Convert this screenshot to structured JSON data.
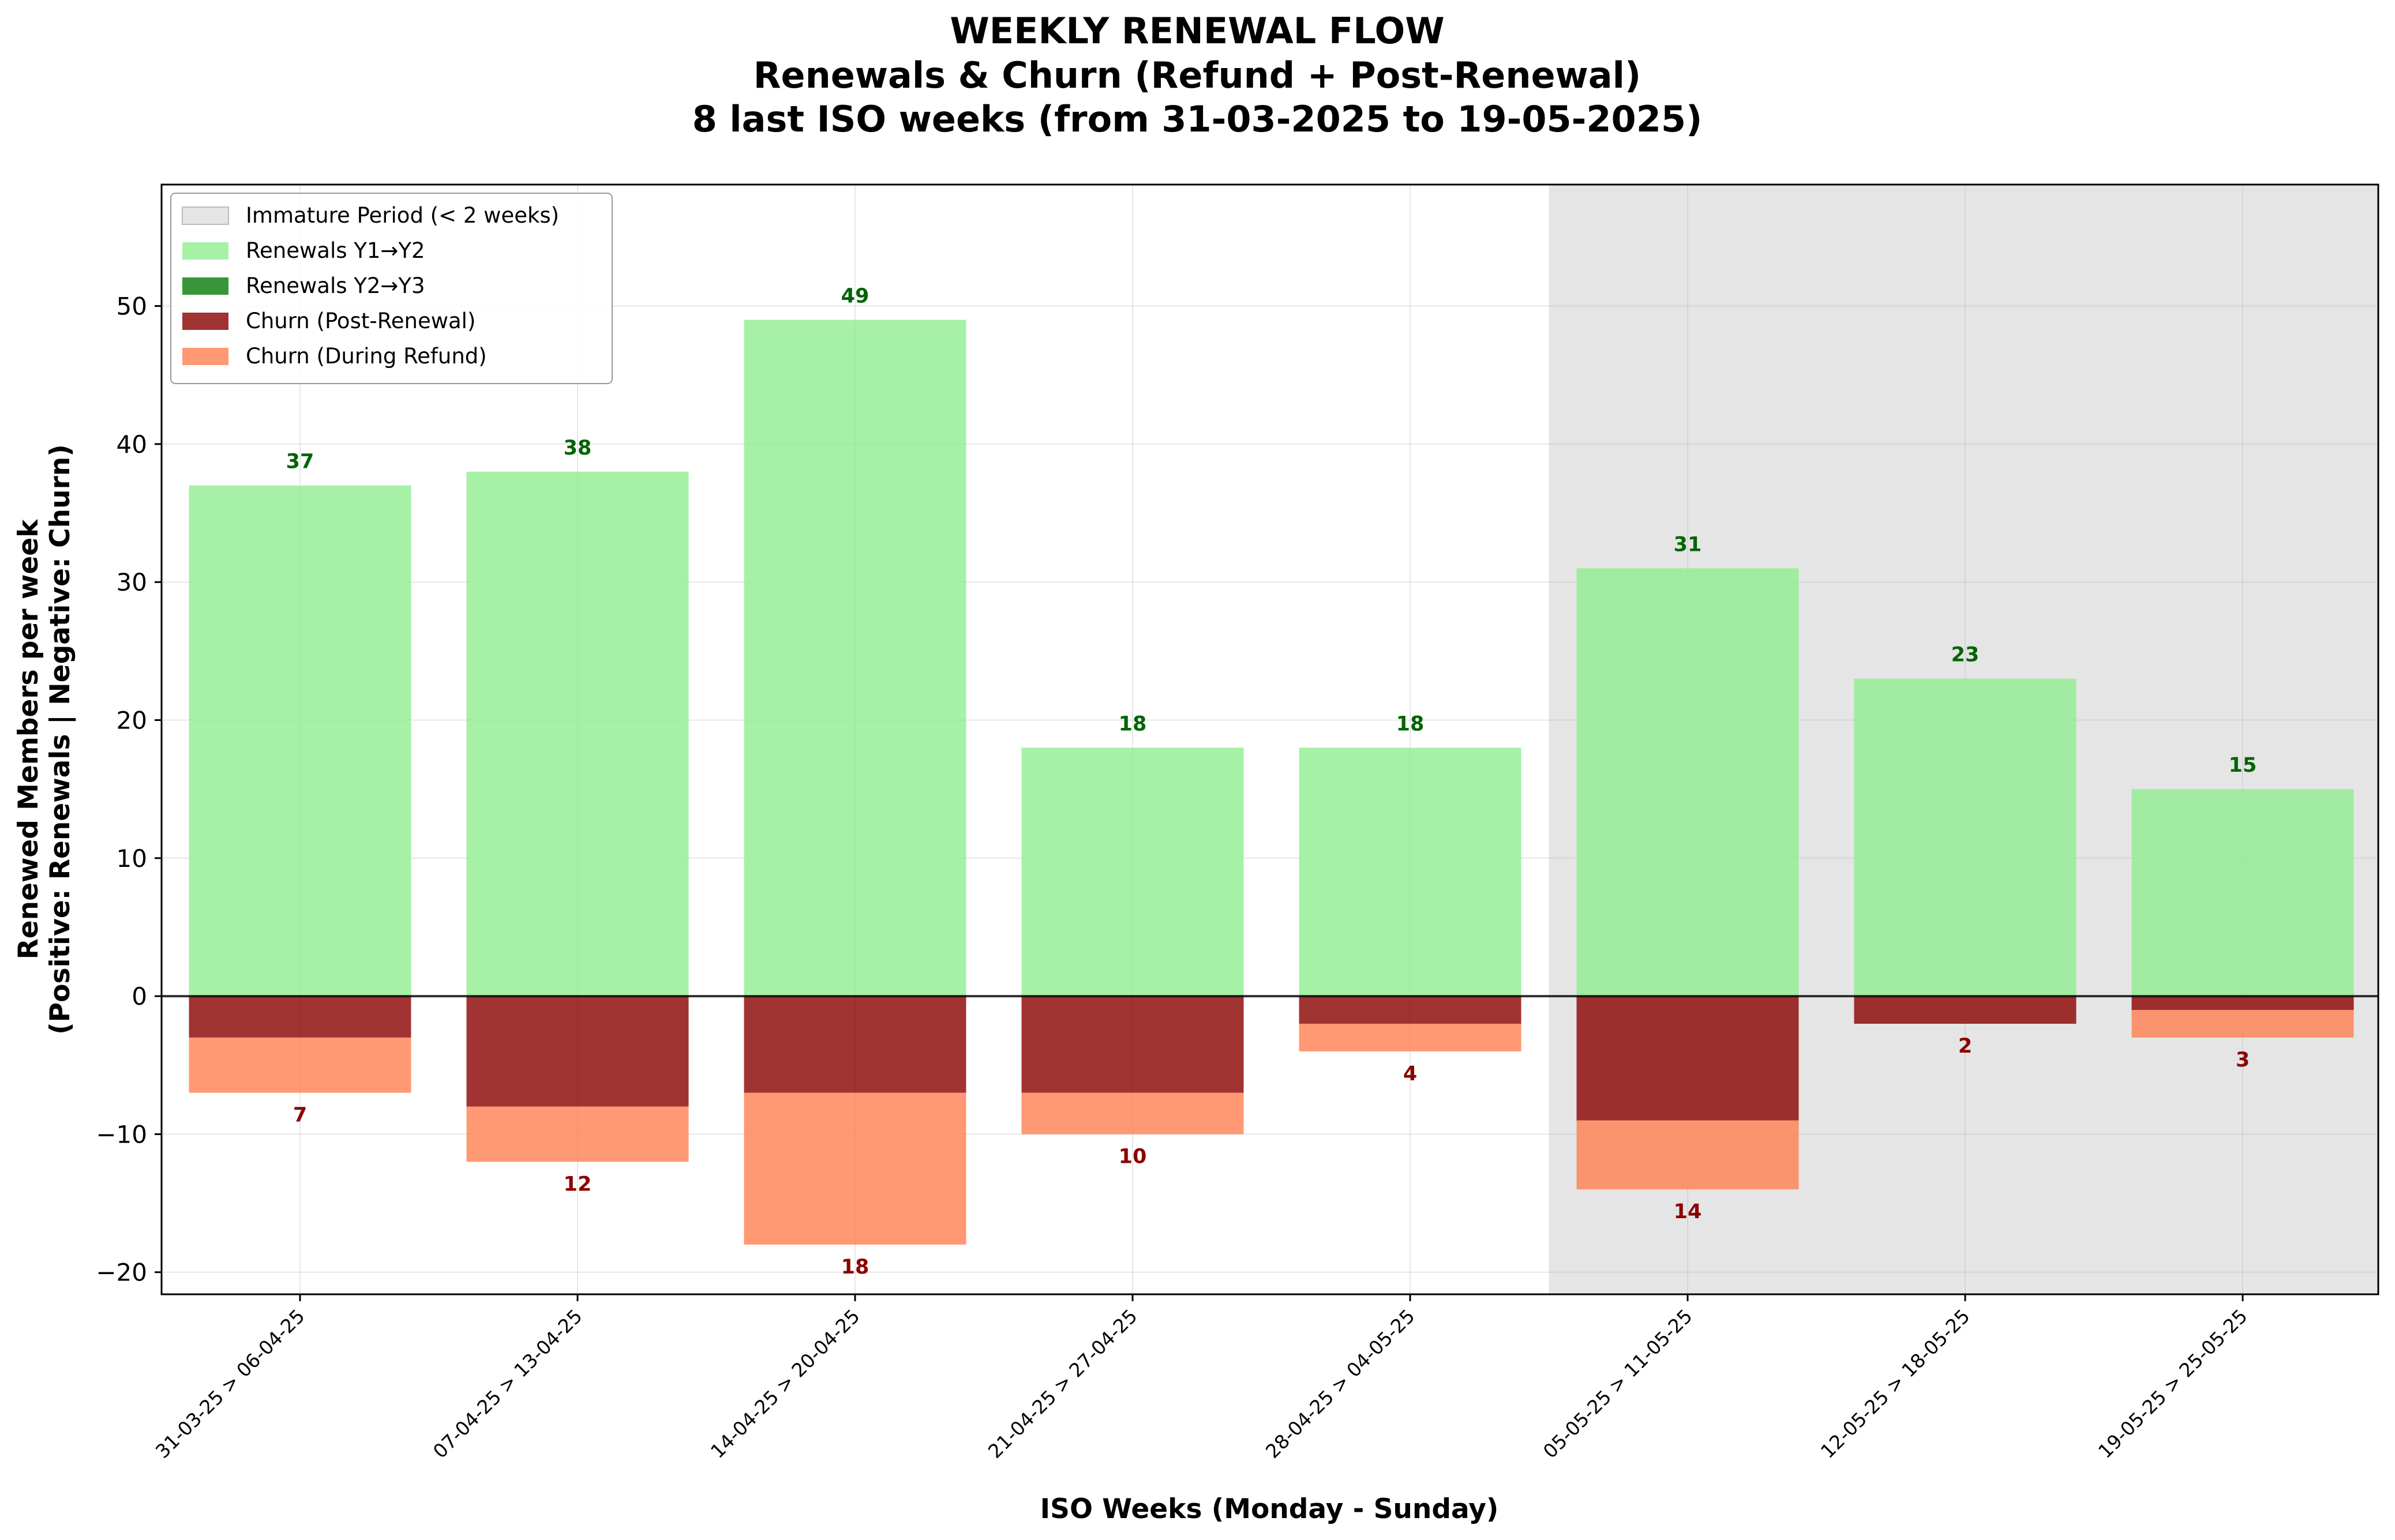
{
  "chart_data": {
    "type": "bar",
    "title_lines": [
      "WEEKLY RENEWAL FLOW",
      "Renewals & Churn (Refund + Post-Renewal)",
      "8 last ISO weeks (from 31-03-2025 to 19-05-2025)"
    ],
    "xlabel": "ISO Weeks (Monday - Sunday)",
    "ylabel_lines": [
      "Renewed Members per week",
      "(Positive: Renewals | Negative: Churn)"
    ],
    "categories": [
      "31-03-25 > 06-04-25",
      "07-04-25 > 13-04-25",
      "14-04-25 > 20-04-25",
      "21-04-25 > 27-04-25",
      "28-04-25 > 04-05-25",
      "05-05-25 > 11-05-25",
      "12-05-25 > 18-05-25",
      "19-05-25 > 25-05-25"
    ],
    "series": [
      {
        "name": "Renewals Y1→Y2",
        "color": "#90ee90",
        "values": [
          37,
          38,
          49,
          18,
          18,
          31,
          23,
          15
        ]
      },
      {
        "name": "Renewals Y2→Y3",
        "color": "#228b22",
        "values": [
          0,
          0,
          0,
          0,
          0,
          0,
          0,
          0
        ]
      },
      {
        "name": "Churn (Post-Renewal)",
        "color": "#8b0000",
        "values": [
          -3,
          -8,
          -7,
          -7,
          -2,
          -9,
          -2,
          -1
        ]
      },
      {
        "name": "Churn (During Refund)",
        "color": "#ff7f50",
        "values": [
          -4,
          -4,
          -11,
          -3,
          -2,
          -5,
          0,
          -2
        ]
      }
    ],
    "total_renewal_labels": [
      "37",
      "38",
      "49",
      "18",
      "18",
      "31",
      "23",
      "15"
    ],
    "total_churn_labels": [
      "7",
      "12",
      "18",
      "10",
      "4",
      "14",
      "2",
      "3"
    ],
    "immature_period": {
      "label": "Immature Period (< 2 weeks)",
      "start_category": 5,
      "color": "#d3d3d3"
    },
    "ylim": [
      -21.6,
      58.8
    ],
    "yticks": [
      -20,
      -10,
      0,
      10,
      20,
      30,
      40,
      50
    ],
    "ytick_labels": [
      "−20",
      "−10",
      "0",
      "10",
      "20",
      "30",
      "40",
      "50"
    ],
    "grid": true,
    "legend_position": "upper-left",
    "colors": {
      "renewal_label": "#006400",
      "churn_label": "#8b0000"
    }
  }
}
